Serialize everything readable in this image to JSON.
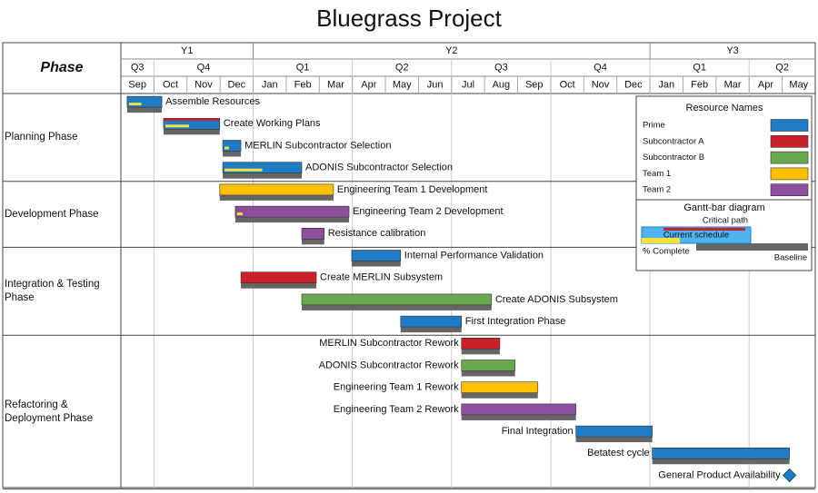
{
  "chart_data": {
    "type": "gantt",
    "title": "Bluegrass Project",
    "phase_header": "Phase",
    "xlim": [
      0,
      21
    ],
    "years": [
      {
        "label": "Y1",
        "span": 4
      },
      {
        "label": "Y2",
        "span": 12
      },
      {
        "label": "Y3",
        "span": 5
      }
    ],
    "quarters": [
      {
        "label": "Q3",
        "span": 1
      },
      {
        "label": "Q4",
        "span": 3
      },
      {
        "label": "Q1",
        "span": 3
      },
      {
        "label": "Q2",
        "span": 3
      },
      {
        "label": "Q3",
        "span": 3
      },
      {
        "label": "Q4",
        "span": 3
      },
      {
        "label": "Q1",
        "span": 3
      },
      {
        "label": "Q2",
        "span": 2
      }
    ],
    "months": [
      "Sep",
      "Oct",
      "Nov",
      "Dec",
      "Jan",
      "Feb",
      "Mar",
      "Apr",
      "May",
      "Jun",
      "Jul",
      "Aug",
      "Sep",
      "Oct",
      "Nov",
      "Dec",
      "Jan",
      "Feb",
      "Mar",
      "Apr",
      "May"
    ],
    "resources": [
      {
        "name": "Prime",
        "color": "#1f7bc4"
      },
      {
        "name": "Subcontractor A",
        "color": "#c9202a"
      },
      {
        "name": "Subcontractor B",
        "color": "#6aa84f"
      },
      {
        "name": "Team 1",
        "color": "#ffc000"
      },
      {
        "name": "Team 2",
        "color": "#8e4e9e"
      }
    ],
    "legend": {
      "title": "Resource Names",
      "diagram_title": "Gantt-bar diagram",
      "critical": "Critical path",
      "current": "Current schedule",
      "complete": "% Complete",
      "baseline": "Baseline"
    },
    "phases": [
      {
        "name": "Planning Phase",
        "tasks": [
          {
            "name": "Assemble Resources",
            "resource": "Prime",
            "start": 0.19,
            "end": 1.24,
            "complete": 40,
            "label_side": "right"
          },
          {
            "name": "Create Working Plans",
            "resource": "Prime",
            "start": 1.29,
            "end": 2.99,
            "complete": 45,
            "critical": true,
            "label_side": "right"
          },
          {
            "name": "MERLIN Subcontractor Selection",
            "resource": "Prime",
            "start": 3.08,
            "end": 3.63,
            "complete": 30,
            "label_side": "right"
          },
          {
            "name": "ADONIS Subcontractor Selection",
            "resource": "Prime",
            "start": 3.08,
            "end": 5.47,
            "complete": 50,
            "label_side": "right"
          }
        ]
      },
      {
        "name": "Development Phase",
        "tasks": [
          {
            "name": "Engineering Team 1 Development",
            "resource": "Team 1",
            "start": 2.99,
            "end": 6.43,
            "label_side": "right"
          },
          {
            "name": "Engineering Team 2 Development",
            "resource": "Team 2",
            "start": 3.46,
            "end": 6.9,
            "complete": 5,
            "label_side": "right"
          },
          {
            "name": "Resistance calibration",
            "resource": "Team 2",
            "start": 5.47,
            "end": 6.15,
            "label_side": "right"
          }
        ]
      },
      {
        "name": "Integration & Testing Phase",
        "tasks": [
          {
            "name": "Internal Performance Validation",
            "resource": "Prime",
            "start": 6.98,
            "end": 8.46,
            "label_side": "right"
          },
          {
            "name": "Create MERLIN Subsystem",
            "resource": "Subcontractor A",
            "start": 3.63,
            "end": 5.91,
            "label_side": "right"
          },
          {
            "name": "Create ADONIS Subsystem",
            "resource": "Subcontractor B",
            "start": 5.47,
            "end": 11.21,
            "label_side": "right"
          },
          {
            "name": "First Integration Phase",
            "resource": "Prime",
            "start": 8.46,
            "end": 10.3,
            "label_side": "right"
          }
        ]
      },
      {
        "name": "Refactoring & Deployment Phase",
        "tasks": [
          {
            "name": "MERLIN Subcontractor Rework",
            "resource": "Subcontractor A",
            "start": 10.3,
            "end": 11.46,
            "label_side": "left"
          },
          {
            "name": "ADONIS Subcontractor Rework",
            "resource": "Subcontractor B",
            "start": 10.3,
            "end": 11.92,
            "label_side": "left"
          },
          {
            "name": "Engineering Team 1 Rework",
            "resource": "Team 1",
            "start": 10.3,
            "end": 12.61,
            "label_side": "left"
          },
          {
            "name": "Engineering Team 2 Rework",
            "resource": "Team 2",
            "start": 10.3,
            "end": 13.76,
            "label_side": "left"
          },
          {
            "name": "Final Integration",
            "resource": "Prime",
            "start": 13.76,
            "end": 16.07,
            "label_side": "left"
          },
          {
            "name": "Betatest cycle",
            "resource": "Prime",
            "start": 16.07,
            "end": 20.22,
            "label_side": "left"
          },
          {
            "name": "General Product Availability",
            "resource": "Prime",
            "milestone": true,
            "date": 20.22,
            "label_side": "left"
          }
        ]
      }
    ]
  }
}
